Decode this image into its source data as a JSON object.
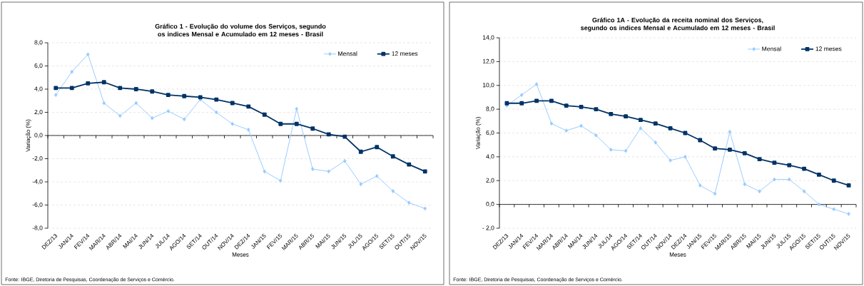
{
  "chart_data": [
    {
      "type": "line",
      "title": "Gráfico 1 - Evolução do volume dos Serviços, segundo os indices Mensal e Acumulado em 12 meses - Brasil",
      "xlabel": "Meses",
      "ylabel": "Variação (%)",
      "categories": [
        "DEZ/13",
        "JAN/14",
        "FEV/14",
        "MAR/14",
        "ABR/14",
        "MAI/14",
        "JUN/14",
        "JUL/14",
        "AGO/14",
        "SET/14",
        "OUT/14",
        "NOV/14",
        "DEZ/14",
        "JAN/15",
        "FEV/15",
        "MAR/15",
        "ABR/15",
        "MAI/15",
        "JUN/15",
        "JUL/15",
        "AGO/15",
        "SET/15",
        "OUT/15",
        "NOV/15"
      ],
      "series": [
        {
          "name": "Mensal",
          "color": "#99ccff",
          "marker": "diamond",
          "values": [
            3.5,
            5.5,
            7.0,
            2.8,
            1.7,
            2.8,
            1.5,
            2.1,
            1.4,
            3.1,
            2.0,
            1.0,
            0.5,
            -3.1,
            -3.9,
            2.3,
            -2.9,
            -3.1,
            -2.2,
            -4.2,
            -3.5,
            -4.8,
            -5.8,
            -6.3
          ]
        },
        {
          "name": "12 meses",
          "color": "#003366",
          "marker": "square",
          "values": [
            4.1,
            4.1,
            4.5,
            4.6,
            4.1,
            4.0,
            3.8,
            3.5,
            3.4,
            3.3,
            3.1,
            2.8,
            2.5,
            1.8,
            1.0,
            1.0,
            0.6,
            0.1,
            -0.1,
            -1.4,
            -1.0,
            -1.8,
            -2.5,
            -3.1
          ]
        }
      ],
      "ylim": [
        -8,
        8
      ],
      "yticks": [
        {
          "value": -8,
          "label": "-8,0"
        },
        {
          "value": -6,
          "label": "-6,0"
        },
        {
          "value": -4,
          "label": "-4,0"
        },
        {
          "value": -2,
          "label": "-2,0"
        },
        {
          "value": 0,
          "label": "0,0"
        },
        {
          "value": 2,
          "label": "2,0"
        },
        {
          "value": 4,
          "label": "4,0"
        },
        {
          "value": 6,
          "label": "6,0"
        },
        {
          "value": 8,
          "label": "8,0"
        }
      ],
      "grid": "y",
      "legend": "top right",
      "annotations": [
        "Fonte: IBGE, Diretoria de Pesquisas, Coordenação de Serviços e Comércio."
      ]
    },
    {
      "type": "line",
      "title": "Gráfico 1A - Evolução da receita nominal dos Serviços, segundo os indices Mensal e Acumulado em 12 meses - Brasil",
      "xlabel": "Meses",
      "ylabel": "Variação (%)",
      "categories": [
        "DEZ/13",
        "JAN/14",
        "FEV/14",
        "MAR/14",
        "ABR/14",
        "MAI/14",
        "JUN/14",
        "JUL/14",
        "AGO/14",
        "SET/14",
        "OUT/14",
        "NOV/14",
        "DEZ/14",
        "JAN/15",
        "FEV/15",
        "MAR/15",
        "ABR/15",
        "MAI/15",
        "JUN/15",
        "JUL/15",
        "AGO/15",
        "SET/15",
        "OUT/15",
        "NOV/15"
      ],
      "series": [
        {
          "name": "Mensal",
          "color": "#99ccff",
          "marker": "diamond",
          "values": [
            8.3,
            9.2,
            10.1,
            6.8,
            6.2,
            6.6,
            5.8,
            4.6,
            4.5,
            6.4,
            5.2,
            3.7,
            4.0,
            1.6,
            0.9,
            6.1,
            1.7,
            1.1,
            2.1,
            2.1,
            1.1,
            0.0,
            -0.4,
            -0.8
          ]
        },
        {
          "name": "12 meses",
          "color": "#003366",
          "marker": "square",
          "values": [
            8.5,
            8.5,
            8.7,
            8.7,
            8.3,
            8.2,
            8.0,
            7.6,
            7.4,
            7.1,
            6.8,
            6.4,
            6.0,
            5.4,
            4.7,
            4.6,
            4.3,
            3.8,
            3.5,
            3.3,
            3.0,
            2.5,
            2.0,
            1.6
          ]
        }
      ],
      "ylim": [
        -2,
        14
      ],
      "yticks": [
        {
          "value": -2,
          "label": "- 2,0"
        },
        {
          "value": 0,
          "label": "0,0"
        },
        {
          "value": 2,
          "label": "2,0"
        },
        {
          "value": 4,
          "label": "4,0"
        },
        {
          "value": 6,
          "label": "6,0"
        },
        {
          "value": 8,
          "label": "8,0"
        },
        {
          "value": 10,
          "label": "10,0"
        },
        {
          "value": 12,
          "label": "12,0"
        },
        {
          "value": 14,
          "label": "14,0"
        }
      ],
      "grid": "y",
      "legend": "top right",
      "annotations": [
        "Fonte: IBGE, Diretoria de Pesquisas, Coordenação de Serviços e Comércio."
      ]
    }
  ]
}
